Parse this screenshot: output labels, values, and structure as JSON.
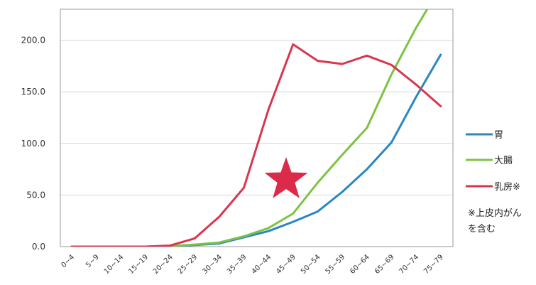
{
  "chart_data": {
    "type": "line",
    "categories": [
      "0~4",
      "5~9",
      "10~14",
      "15~19",
      "20~24",
      "25~29",
      "30~34",
      "35~39",
      "40~44",
      "45~49",
      "50~54",
      "55~59",
      "60~64",
      "65~69",
      "70~74",
      "75~79"
    ],
    "ylim": [
      0,
      230
    ],
    "y_ticks": [
      "0.0",
      "50.0",
      "100.0",
      "150.0",
      "200.0"
    ],
    "y_tick_values": [
      0,
      50,
      100,
      150,
      200
    ],
    "grid": true,
    "legend_position": "right",
    "series": [
      {
        "name": "胃",
        "color": "#2a86c4",
        "values": [
          0,
          0,
          0,
          0,
          0.5,
          1.5,
          3,
          9,
          15,
          24,
          34,
          53,
          75,
          101,
          145,
          186
        ]
      },
      {
        "name": "大腸",
        "color": "#7ec242",
        "values": [
          0,
          0,
          0,
          0,
          0.5,
          2,
          4,
          10,
          18,
          32,
          62,
          89,
          115,
          167,
          212,
          252
        ]
      },
      {
        "name": "乳房※",
        "color": "#d9364e",
        "values": [
          0,
          0,
          0,
          0,
          1,
          8,
          29,
          57,
          133,
          196,
          180,
          177,
          185,
          176,
          157,
          136
        ]
      }
    ],
    "note_lines": [
      "※上皮内がん",
      "を含む"
    ],
    "marker": {
      "shape": "star",
      "color": "#dc2a4a"
    }
  }
}
